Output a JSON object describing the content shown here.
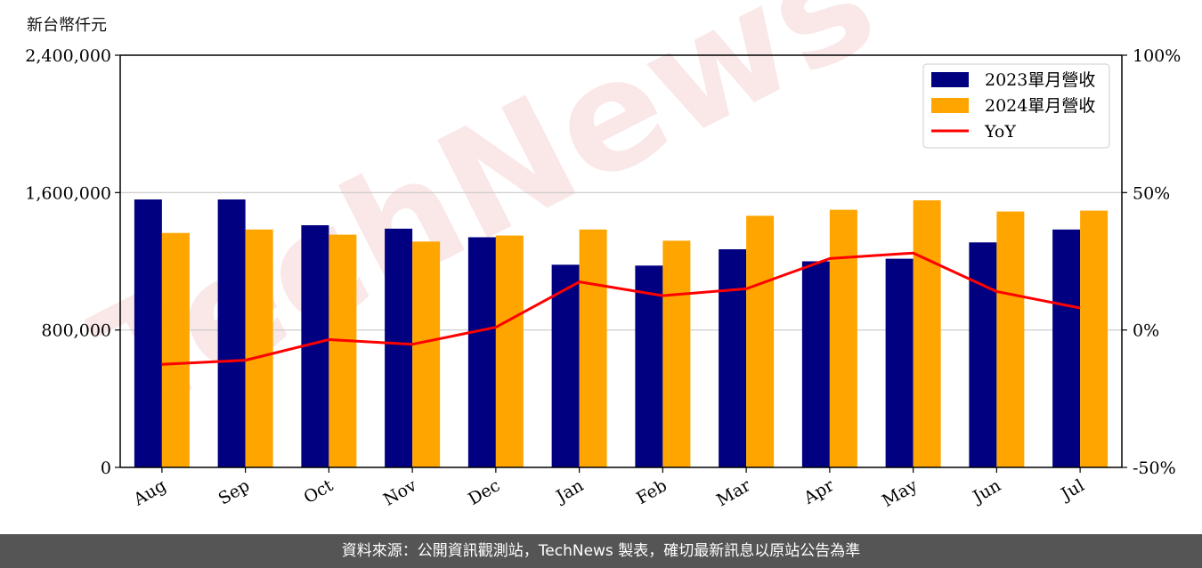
{
  "unit_label": "新台幣仟元",
  "footer_text": "資料來源：公開資訊觀測站，TechNews 製表，確切最新訊息以原站公告為準",
  "watermark": "TechNews",
  "colors": {
    "series_2023": "#000080",
    "series_2024": "#FFA500",
    "yoy": "#FF0000",
    "footer_bg": "#555555"
  },
  "chart_data": {
    "type": "bar",
    "categories": [
      "Aug",
      "Sep",
      "Oct",
      "Nov",
      "Dec",
      "Jan",
      "Feb",
      "Mar",
      "Apr",
      "May",
      "Jun",
      "Jul"
    ],
    "series": [
      {
        "name": "2023單月營收",
        "values": [
          1560000,
          1560000,
          1410000,
          1390000,
          1340000,
          1180000,
          1175000,
          1270000,
          1200000,
          1215000,
          1310000,
          1385000
        ]
      },
      {
        "name": "2024單月營收",
        "values": [
          1365000,
          1385000,
          1355000,
          1315000,
          1350000,
          1385000,
          1320000,
          1465000,
          1500000,
          1555000,
          1490000,
          1495000
        ]
      }
    ],
    "line_series": {
      "name": "YoY",
      "values": [
        -12.5,
        -11.0,
        -3.5,
        -5.2,
        1.0,
        17.5,
        12.5,
        15.0,
        26.0,
        28.0,
        14.0,
        8.0
      ]
    },
    "ylabel": "新台幣仟元",
    "ylim": [
      0,
      2400000
    ],
    "yticks": [
      "0",
      "800,000",
      "1,600,000",
      "2,400,000"
    ],
    "ylim_right": [
      -50,
      100
    ],
    "yticks_right": [
      "-50%",
      "0%",
      "50%",
      "100%"
    ],
    "grid": "horizontal",
    "legend_position": "top-right"
  }
}
